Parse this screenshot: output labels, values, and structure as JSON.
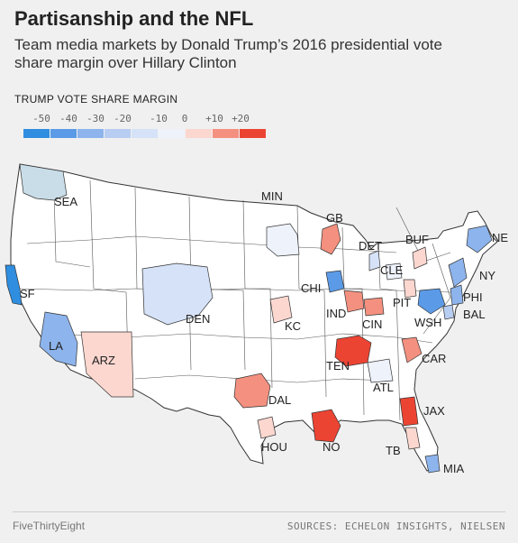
{
  "header": {
    "title": "Partisanship and the NFL",
    "subtitle": "Team media markets by Donald Trump’s 2016 presidential vote share margin over Hillary Clinton"
  },
  "legend": {
    "title": "TRUMP VOTE SHARE MARGIN",
    "ticks": [
      "-50",
      "-40",
      "-30",
      "-20",
      "-10",
      "0",
      "+10",
      "+20"
    ],
    "colors": [
      "#2f8ee0",
      "#5b9ae6",
      "#8db4ec",
      "#b8cdf2",
      "#d6e2f7",
      "#eef2fb",
      "#fcd7d0",
      "#f4907f",
      "#ec4433"
    ]
  },
  "markets": [
    {
      "label": "SEA",
      "color": "#c9dde8"
    },
    {
      "label": "MIN",
      "color": "#eef2fb"
    },
    {
      "label": "GB",
      "color": "#f4907f"
    },
    {
      "label": "DET",
      "color": "#d6e2f7"
    },
    {
      "label": "BUF",
      "color": "#fcd7d0"
    },
    {
      "label": "NE",
      "color": "#8db4ec"
    },
    {
      "label": "NY",
      "color": "#8db4ec"
    },
    {
      "label": "CLE",
      "color": "#eef2fb"
    },
    {
      "label": "PIT",
      "color": "#fcd7d0"
    },
    {
      "label": "PHI",
      "color": "#8db4ec"
    },
    {
      "label": "BAL",
      "color": "#b8cdf2"
    },
    {
      "label": "WSH",
      "color": "#5b9ae6"
    },
    {
      "label": "CHI",
      "color": "#5b9ae6"
    },
    {
      "label": "IND",
      "color": "#f4907f"
    },
    {
      "label": "CIN",
      "color": "#f4907f"
    },
    {
      "label": "SF",
      "color": "#2f8ee0"
    },
    {
      "label": "DEN",
      "color": "#d6e2f7"
    },
    {
      "label": "KC",
      "color": "#fcd7d0"
    },
    {
      "label": "LA",
      "color": "#8db4ec"
    },
    {
      "label": "ARZ",
      "color": "#fcd7d0"
    },
    {
      "label": "TEN",
      "color": "#ec4433"
    },
    {
      "label": "CAR",
      "color": "#f4907f"
    },
    {
      "label": "ATL",
      "color": "#eef2fb"
    },
    {
      "label": "DAL",
      "color": "#f4907f"
    },
    {
      "label": "JAX",
      "color": "#ec4433"
    },
    {
      "label": "HOU",
      "color": "#fcd7d0"
    },
    {
      "label": "NO",
      "color": "#ec4433"
    },
    {
      "label": "TB",
      "color": "#fcd7d0"
    },
    {
      "label": "MIA",
      "color": "#8db4ec"
    }
  ],
  "footer": {
    "brand": "FiveThirtyEight",
    "sources": "SOURCES: ECHELON INSIGHTS, NIELSEN"
  }
}
